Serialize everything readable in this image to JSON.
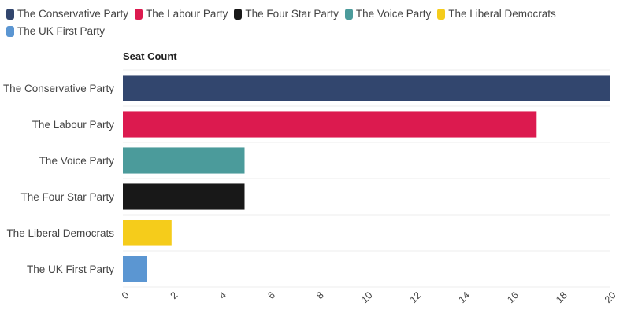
{
  "chart_data": {
    "type": "bar",
    "orientation": "horizontal",
    "title": "",
    "ylabel": "Seat Count",
    "xlabel": "",
    "categories": [
      "The Conservative Party",
      "The Labour Party",
      "The Voice Party",
      "The Four Star Party",
      "The Liberal Democrats",
      "The UK First Party"
    ],
    "values": [
      20,
      17,
      5,
      5,
      2,
      1
    ],
    "colors": [
      "#32466e",
      "#dc1a4f",
      "#4b9b9b",
      "#181818",
      "#f5cc1b",
      "#5b96d2"
    ],
    "xlim": [
      0,
      20
    ],
    "ticks": [
      "0",
      "2",
      "4",
      "6",
      "8",
      "10",
      "12",
      "14",
      "16",
      "18",
      "20"
    ],
    "grid": true,
    "legend": {
      "placement": "top-left",
      "items": [
        {
          "name": "The Conservative Party",
          "color": "#32466e"
        },
        {
          "name": "The Labour Party",
          "color": "#dc1a4f"
        },
        {
          "name": "The Four Star Party",
          "color": "#181818"
        },
        {
          "name": "The Voice Party",
          "color": "#4b9b9b"
        },
        {
          "name": "The Liberal Democrats",
          "color": "#f5cc1b"
        },
        {
          "name": "The UK First Party",
          "color": "#5b96d2"
        }
      ]
    }
  }
}
